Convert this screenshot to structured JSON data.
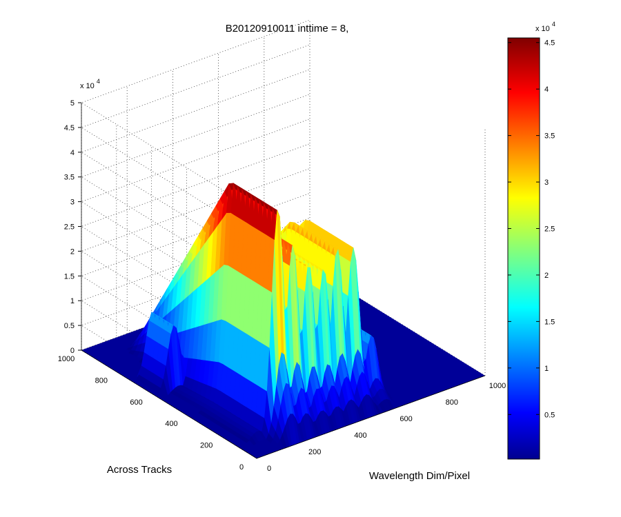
{
  "figure": {
    "title": "B20120910011 inttime = 8,"
  },
  "chart_data": {
    "type": "surface",
    "title": "B20120910011 inttime = 8,",
    "xlabel": "Wavelength Dim/Pixel",
    "ylabel": "Across Tracks",
    "zlabel": "",
    "xlim": [
      0,
      1000
    ],
    "ylim": [
      0,
      1000
    ],
    "zlim": [
      0,
      50000
    ],
    "x_ticks": [
      "0",
      "200",
      "400",
      "600",
      "800",
      "1000"
    ],
    "y_ticks": [
      "0",
      "200",
      "400",
      "600",
      "800",
      "1000"
    ],
    "z_ticks": [
      "0",
      "0.5",
      "1",
      "1.5",
      "2",
      "2.5",
      "3",
      "3.5",
      "4",
      "4.5",
      "5"
    ],
    "z_exponent": "x 10",
    "z_exponent_power": "4",
    "grid": true,
    "colormap": "jet",
    "colorbar": {
      "range": [
        200,
        45500
      ],
      "ticks": [
        "0.5",
        "1",
        "1.5",
        "2",
        "2.5",
        "3",
        "3.5",
        "4",
        "4.5"
      ],
      "tick_values": [
        5000,
        10000,
        15000,
        20000,
        25000,
        30000,
        35000,
        40000,
        45000
      ],
      "exponent": "x 10",
      "exponent_power": "4"
    },
    "peak_value": 45500,
    "bands": [
      {
        "x": 80,
        "peak": 13000
      },
      {
        "x": 170,
        "peak": 45500
      },
      {
        "x": 235,
        "peak": 37000
      },
      {
        "x": 305,
        "peak": 32000
      },
      {
        "x": 370,
        "peak": 30000
      },
      {
        "x": 430,
        "peak": 33000
      },
      {
        "x": 500,
        "peak": 32000
      },
      {
        "x": 580,
        "peak": 13000
      }
    ]
  }
}
